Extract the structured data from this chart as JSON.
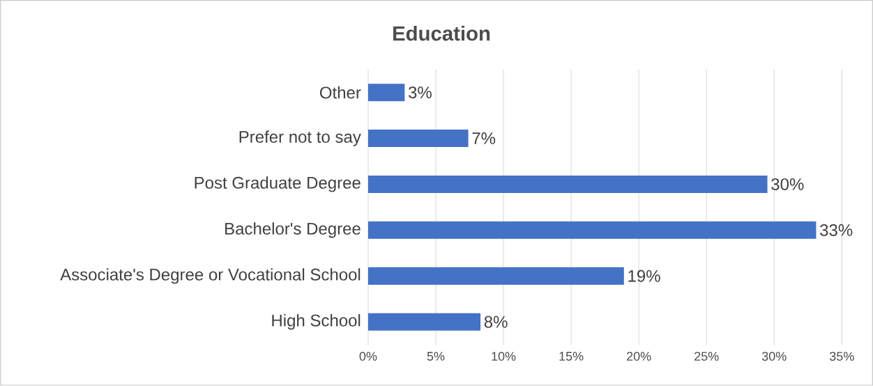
{
  "chart_data": {
    "type": "bar",
    "orientation": "horizontal",
    "title": "Education",
    "categories": [
      "Other",
      "Prefer not to say",
      "Post Graduate Degree",
      "Bachelor's Degree",
      "Associate's Degree or Vocational School",
      "High School"
    ],
    "values": [
      2.7,
      7.4,
      29.5,
      33.1,
      18.9,
      8.3
    ],
    "value_labels": [
      "3%",
      "7%",
      "30%",
      "33%",
      "19%",
      "8%"
    ],
    "color": "#4472c4",
    "xlim": [
      0,
      35
    ],
    "xticks": [
      {
        "value": 0,
        "label": "0%"
      },
      {
        "value": 5,
        "label": "5%"
      },
      {
        "value": 10,
        "label": "10%"
      },
      {
        "value": 15,
        "label": "15%"
      },
      {
        "value": 20,
        "label": "20%"
      },
      {
        "value": 25,
        "label": "25%"
      },
      {
        "value": 30,
        "label": "30%"
      },
      {
        "value": 35,
        "label": "35%"
      }
    ],
    "grid": "x"
  }
}
